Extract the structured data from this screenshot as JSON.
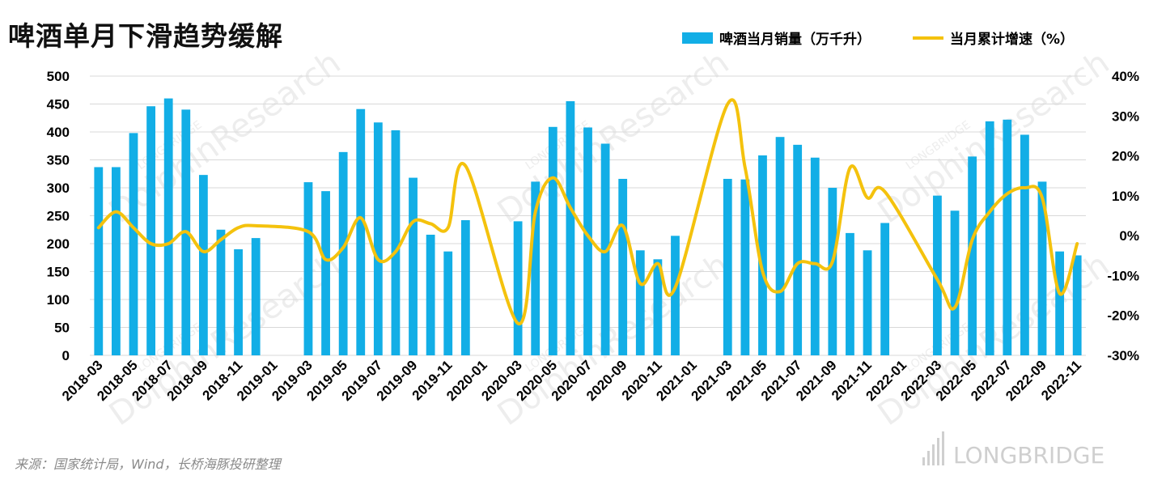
{
  "title": "啤酒单月下滑趋势缓解",
  "source": "来源：国家统计局，Wind，长桥海豚投研整理",
  "watermark": {
    "brand": "LONGBRIDGE",
    "research": "DolphinResearch"
  },
  "colors": {
    "bar": "#12aee6",
    "line": "#f4c20d"
  },
  "chart_data": {
    "type": "bar",
    "title": "啤酒单月下滑趋势缓解",
    "x": [
      "2018-03",
      "2018-04",
      "2018-05",
      "2018-06",
      "2018-07",
      "2018-08",
      "2018-09",
      "2018-10",
      "2018-11",
      "2018-12",
      "2019-01",
      "2019-02",
      "2019-03",
      "2019-04",
      "2019-05",
      "2019-06",
      "2019-07",
      "2019-08",
      "2019-09",
      "2019-10",
      "2019-11",
      "2019-12",
      "2020-01",
      "2020-02",
      "2020-03",
      "2020-04",
      "2020-05",
      "2020-06",
      "2020-07",
      "2020-08",
      "2020-09",
      "2020-10",
      "2020-11",
      "2020-12",
      "2021-01",
      "2021-02",
      "2021-03",
      "2021-04",
      "2021-05",
      "2021-06",
      "2021-07",
      "2021-08",
      "2021-09",
      "2021-10",
      "2021-11",
      "2021-12",
      "2022-01",
      "2022-02",
      "2022-03",
      "2022-04",
      "2022-05",
      "2022-06",
      "2022-07",
      "2022-08",
      "2022-09",
      "2022-10",
      "2022-11"
    ],
    "x_tick_labels": [
      "2018-03",
      "2018-05",
      "2018-07",
      "2018-09",
      "2018-11",
      "2019-01",
      "2019-03",
      "2019-05",
      "2019-07",
      "2019-09",
      "2019-11",
      "2020-01",
      "2020-03",
      "2020-05",
      "2020-07",
      "2020-09",
      "2020-11",
      "2021-01",
      "2021-03",
      "2021-05",
      "2021-07",
      "2021-09",
      "2021-11",
      "2022-01",
      "2022-03",
      "2022-05",
      "2022-07",
      "2022-09",
      "2022-11"
    ],
    "series": [
      {
        "name": "啤酒当月销量（万千升）",
        "type": "bar",
        "axis": "left",
        "values": [
          337,
          337,
          398,
          446,
          460,
          440,
          323,
          225,
          190,
          210,
          null,
          null,
          310,
          294,
          364,
          441,
          417,
          403,
          318,
          216,
          186,
          242,
          null,
          null,
          240,
          311,
          409,
          455,
          408,
          379,
          316,
          188,
          172,
          214,
          null,
          null,
          316,
          315,
          358,
          391,
          377,
          354,
          300,
          219,
          188,
          237,
          null,
          null,
          286,
          259,
          356,
          419,
          422,
          395,
          311,
          186,
          179
        ]
      },
      {
        "name": "当月累计增速（%）",
        "type": "line",
        "axis": "right",
        "values": [
          2,
          6,
          2,
          -2,
          -2,
          1,
          -4,
          -1,
          2,
          2.5,
          null,
          null,
          1,
          -6,
          -3,
          4.5,
          -6,
          -4,
          3.5,
          3,
          2,
          17.5,
          null,
          null,
          -22,
          6,
          14.5,
          7,
          0,
          -4,
          2.5,
          -12,
          -7,
          -13,
          null,
          null,
          33,
          17,
          -9,
          -14,
          -7,
          -7,
          -6.5,
          17,
          9.5,
          11,
          null,
          null,
          -11,
          -18,
          -1,
          6,
          10.5,
          12,
          9.5,
          -14.5,
          -2
        ]
      }
    ],
    "y_left": {
      "ylim": [
        0,
        500
      ],
      "ticks": [
        0,
        50,
        100,
        150,
        200,
        250,
        300,
        350,
        400,
        450,
        500
      ],
      "tick_labels": [
        "0",
        "50",
        "100",
        "150",
        "200",
        "250",
        "300",
        "350",
        "400",
        "450",
        "500"
      ]
    },
    "y_right": {
      "ylim": [
        -30,
        40
      ],
      "ticks": [
        -30,
        -20,
        -10,
        0,
        10,
        20,
        30,
        40
      ],
      "tick_labels": [
        "-30%",
        "-20%",
        "-10%",
        "0%",
        "10%",
        "20%",
        "30%",
        "40%"
      ]
    },
    "grid": true,
    "legend": "top-right"
  }
}
